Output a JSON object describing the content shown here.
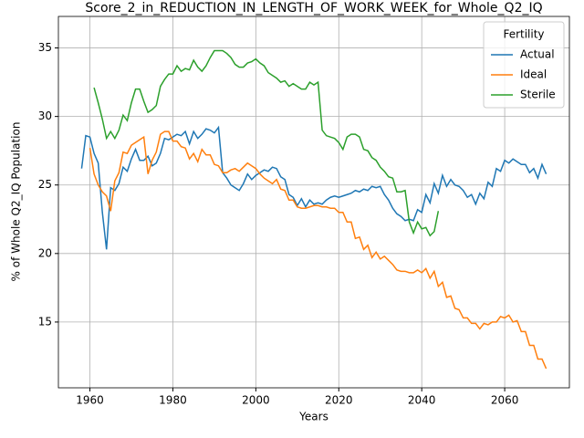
{
  "chart_data": {
    "type": "line",
    "title": "Score_2_in_REDUCTION_IN_LENGTH_OF_WORK_WEEK_for_Whole_Q2_IQ",
    "xlabel": "Years",
    "ylabel": "% of Whole Q2_IQ Population",
    "legend_title": "Fertility",
    "legend": "upper right",
    "grid": true,
    "x": [
      1958,
      1959,
      1960,
      1961,
      1962,
      1963,
      1964,
      1965,
      1966,
      1967,
      1968,
      1969,
      1970,
      1971,
      1972,
      1973,
      1974,
      1975,
      1976,
      1977,
      1978,
      1979,
      1980,
      1981,
      1982,
      1983,
      1984,
      1985,
      1986,
      1987,
      1988,
      1989,
      1990,
      1991,
      1992,
      1993,
      1994,
      1995,
      1996,
      1997,
      1998,
      1999,
      2000,
      2001,
      2002,
      2003,
      2004,
      2005,
      2006,
      2007,
      2008,
      2009,
      2010,
      2011,
      2012,
      2013,
      2014,
      2015,
      2016,
      2017,
      2018,
      2019,
      2020,
      2021,
      2022,
      2023,
      2024,
      2025,
      2026,
      2027,
      2028,
      2029,
      2030,
      2031,
      2032,
      2033,
      2034,
      2035,
      2036,
      2037,
      2038,
      2039,
      2040,
      2041,
      2042,
      2043,
      2044,
      2045,
      2046,
      2047,
      2048,
      2049,
      2050,
      2051,
      2052,
      2053,
      2054,
      2055,
      2056,
      2057,
      2058,
      2059,
      2060,
      2061,
      2062,
      2063,
      2064,
      2065,
      2066,
      2067,
      2068,
      2069,
      2070
    ],
    "series": [
      {
        "name": "Actual",
        "color": "#1f77b4",
        "values": [
          26.2,
          28.6,
          28.5,
          27.3,
          26.6,
          23.0,
          20.3,
          24.8,
          24.6,
          25.1,
          26.3,
          26.0,
          26.9,
          27.6,
          26.8,
          26.8,
          27.1,
          26.4,
          26.6,
          27.3,
          28.4,
          28.3,
          28.5,
          28.7,
          28.6,
          28.9,
          28.0,
          28.9,
          28.4,
          28.7,
          29.1,
          29.0,
          28.8,
          29.2,
          25.9,
          25.5,
          25.0,
          24.8,
          24.6,
          25.1,
          25.8,
          25.4,
          25.7,
          25.9,
          26.1,
          26.0,
          26.3,
          26.2,
          25.6,
          25.4,
          24.3,
          24.1,
          23.5,
          24.0,
          23.4,
          23.9,
          23.6,
          23.7,
          23.6,
          23.9,
          24.1,
          24.2,
          24.1,
          24.2,
          24.3,
          24.4,
          24.6,
          24.5,
          24.7,
          24.6,
          24.9,
          24.8,
          24.9,
          24.3,
          23.9,
          23.3,
          22.9,
          22.7,
          22.4,
          22.5,
          22.4,
          23.2,
          23.0,
          24.3,
          23.7,
          25.1,
          24.4,
          25.7,
          24.9,
          25.4,
          25.0,
          24.9,
          24.6,
          24.1,
          24.3,
          23.6,
          24.4,
          24.0,
          25.2,
          24.9,
          26.2,
          26.0,
          26.8,
          26.6,
          26.9,
          26.7,
          26.5,
          26.5,
          25.9,
          26.2,
          25.5,
          26.5,
          25.8
        ]
      },
      {
        "name": "Ideal",
        "color": "#ff7f0e",
        "values": [
          null,
          null,
          27.7,
          25.8,
          25.0,
          24.5,
          24.2,
          23.1,
          25.3,
          25.9,
          27.4,
          27.3,
          27.9,
          28.1,
          28.3,
          28.5,
          25.8,
          26.8,
          27.4,
          28.7,
          28.9,
          28.9,
          28.2,
          28.2,
          27.8,
          27.7,
          26.9,
          27.3,
          26.7,
          27.6,
          27.2,
          27.2,
          26.5,
          26.4,
          25.9,
          25.9,
          26.1,
          26.2,
          26.0,
          26.3,
          26.6,
          26.4,
          26.2,
          25.8,
          25.5,
          25.3,
          25.1,
          25.4,
          24.7,
          24.6,
          23.9,
          23.9,
          23.4,
          23.3,
          23.3,
          23.4,
          23.5,
          23.5,
          23.4,
          23.4,
          23.3,
          23.3,
          23.0,
          23.0,
          22.3,
          22.3,
          21.1,
          21.2,
          20.3,
          20.6,
          19.7,
          20.1,
          19.6,
          19.8,
          19.5,
          19.2,
          18.8,
          18.7,
          18.7,
          18.6,
          18.6,
          18.8,
          18.6,
          18.9,
          18.2,
          18.7,
          17.6,
          17.9,
          16.8,
          16.9,
          16.0,
          15.9,
          15.3,
          15.3,
          14.9,
          14.9,
          14.5,
          14.9,
          14.8,
          15.0,
          15.0,
          15.4,
          15.3,
          15.5,
          15.0,
          15.1,
          14.3,
          14.3,
          13.3,
          13.3,
          12.3,
          12.3,
          11.6
        ]
      },
      {
        "name": "Sterile",
        "color": "#2ca02c",
        "values": [
          null,
          null,
          null,
          32.1,
          31.0,
          29.8,
          28.4,
          28.9,
          28.4,
          29.0,
          30.1,
          29.7,
          31.0,
          32.0,
          32.0,
          31.1,
          30.3,
          30.5,
          30.8,
          32.2,
          32.7,
          33.1,
          33.1,
          33.7,
          33.3,
          33.5,
          33.4,
          34.1,
          33.6,
          33.3,
          33.7,
          34.3,
          34.8,
          34.8,
          34.8,
          34.6,
          34.3,
          33.8,
          33.6,
          33.6,
          33.9,
          34.0,
          34.2,
          33.9,
          33.7,
          33.2,
          33.0,
          32.8,
          32.5,
          32.6,
          32.2,
          32.4,
          32.2,
          32.0,
          32.0,
          32.5,
          32.3,
          32.5,
          29.0,
          28.6,
          28.5,
          28.4,
          28.1,
          27.6,
          28.5,
          28.7,
          28.7,
          28.5,
          27.6,
          27.5,
          27.0,
          26.8,
          26.3,
          26.0,
          25.6,
          25.5,
          24.5,
          24.5,
          24.6,
          22.3,
          21.5,
          22.3,
          21.8,
          21.9,
          21.3,
          21.6,
          23.1,
          null,
          null,
          null,
          null,
          null,
          null,
          null,
          null,
          null,
          null,
          null,
          null,
          null,
          null,
          null,
          null,
          null,
          null,
          null,
          null,
          null,
          null,
          null,
          null,
          null,
          null
        ]
      }
    ],
    "xlim": [
      1952.4,
      2075.6
    ],
    "xticks": [
      1960,
      1980,
      2000,
      2020,
      2040,
      2060
    ],
    "ylim": [
      10.2,
      37.3
    ],
    "yticks": [
      15,
      20,
      25,
      30,
      35
    ]
  }
}
